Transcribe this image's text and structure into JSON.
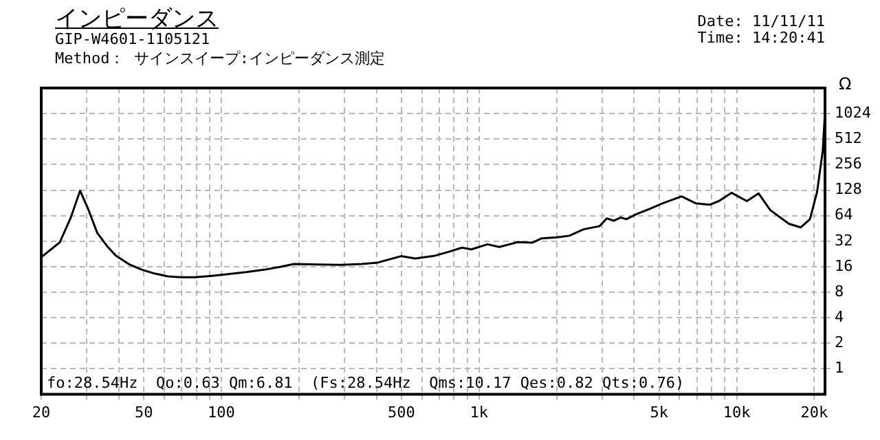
{
  "chart_data": {
    "type": "line",
    "title": "インピーダンス",
    "subtitle": "GIP-W4601-1105121",
    "ylabel": "Ω",
    "annotations": [
      "Method： サインスイープ:インピーダンス測定",
      "Date: 11/11/11",
      "Time: 14:20:41",
      "fo:28.54Hz  Qo:0.63 Qm:6.81  (Fs:28.54Hz  Qms:10.17 Qes:0.82 Qts:0.76)"
    ],
    "log": "xy",
    "grid": true,
    "legend": false,
    "marker": "none",
    "line_style": "solid",
    "xlim": [
      20,
      22000
    ],
    "ylim": [
      0.5,
      2048
    ],
    "xticks": [
      20,
      {
        "value": 30,
        "label": null
      },
      {
        "value": 40,
        "label": null
      },
      50,
      {
        "value": 60,
        "label": null
      },
      {
        "value": 70,
        "label": null
      },
      {
        "value": 80,
        "label": null
      },
      {
        "value": 90,
        "label": null
      },
      100,
      {
        "value": 200,
        "label": null
      },
      {
        "value": 300,
        "label": null
      },
      {
        "value": 400,
        "label": null
      },
      500,
      {
        "value": 600,
        "label": null
      },
      {
        "value": 700,
        "label": null
      },
      {
        "value": 800,
        "label": null
      },
      {
        "value": 900,
        "label": null
      },
      {
        "value": 1000,
        "label": "1k"
      },
      {
        "value": 2000,
        "label": null
      },
      {
        "value": 3000,
        "label": null
      },
      {
        "value": 4000,
        "label": null
      },
      {
        "value": 5000,
        "label": "5k"
      },
      {
        "value": 6000,
        "label": null
      },
      {
        "value": 7000,
        "label": null
      },
      {
        "value": 8000,
        "label": null
      },
      {
        "value": 9000,
        "label": null
      },
      {
        "value": 10000,
        "label": "10k"
      },
      {
        "value": 20000,
        "label": "20k"
      }
    ],
    "yticks": [
      1,
      2,
      4,
      8,
      16,
      32,
      64,
      128,
      256,
      512,
      1024
    ],
    "series": [
      {
        "color": "#000000",
        "x": [
          20,
          23.6,
          26,
          28.3,
          30.5,
          33,
          36,
          39,
          44,
          49,
          55,
          62,
          70,
          79,
          92,
          106,
          125,
          148,
          170,
          191,
          240,
          289,
          350,
          405,
          498,
          565,
          667,
          757,
          858,
          933,
          1079,
          1198,
          1416,
          1604,
          1745,
          2000,
          2241,
          2541,
          2939,
          3129,
          3331,
          3548,
          3726,
          4100,
          4556,
          5165,
          6107,
          6920,
          7844,
          8521,
          9540,
          10943,
          12160,
          13490,
          15940,
          17700,
          19230,
          20500,
          21560,
          22000
        ],
        "values": [
          20.7,
          31,
          60,
          126,
          75,
          40,
          28,
          21.5,
          17,
          14.8,
          13.3,
          12.3,
          12.0,
          12.0,
          12.5,
          13.1,
          13.8,
          14.8,
          16,
          17.2,
          17,
          16.8,
          17.2,
          17.9,
          21.3,
          20,
          21.4,
          23.8,
          26.8,
          25.6,
          29.4,
          27.3,
          31.2,
          30.7,
          34.5,
          35.5,
          37.1,
          44.1,
          48.2,
          59.4,
          55.8,
          60.9,
          58,
          67,
          76,
          89.5,
          108,
          89.5,
          86,
          95,
          119,
          95,
          117,
          74.4,
          51.3,
          46.5,
          58,
          122,
          372,
          1060
        ]
      }
    ]
  }
}
